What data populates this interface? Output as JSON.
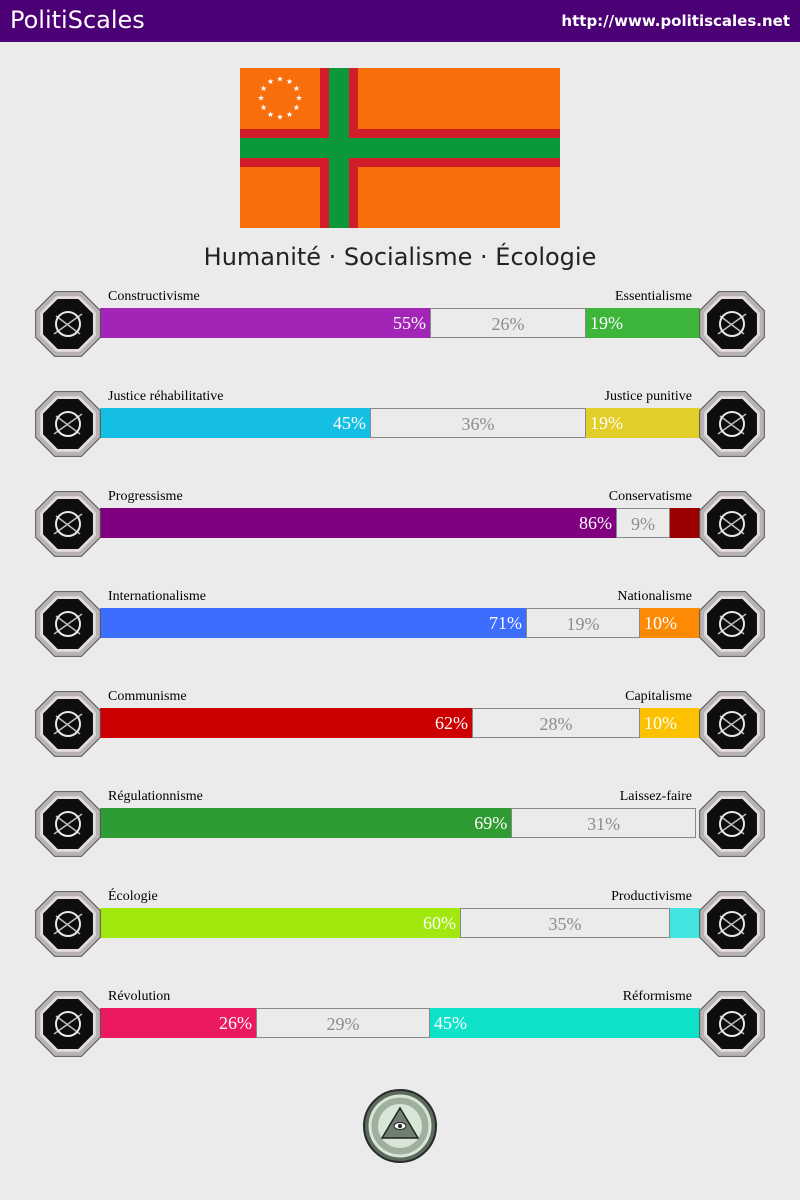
{
  "header": {
    "brand": "PolitiScales",
    "url": "http://www.politiscales.net"
  },
  "slogan": "Humanité · Socialisme · Écologie",
  "colors": {
    "header_bg": "#4b0076",
    "flag_orange": "#f76e0b",
    "flag_green": "#0b983a",
    "flag_red": "#d11d2a"
  },
  "axes": [
    {
      "left_label": "Constructivisme",
      "right_label": "Essentialisme",
      "left_value": 55,
      "center_value": 26,
      "right_value": 19,
      "left_text": "55%",
      "center_text": "26%",
      "right_text": "19%",
      "left_color": "#a225b8",
      "right_color": "#3db53b",
      "left_icon": "eye-icon",
      "right_icon": "flower-icon"
    },
    {
      "left_label": "Justice réhabilitative",
      "right_label": "Justice punitive",
      "left_value": 45,
      "center_value": 36,
      "right_value": 19,
      "left_text": "45%",
      "center_text": "36%",
      "right_text": "19%",
      "left_color": "#14bfe3",
      "right_color": "#e3cd28",
      "left_icon": "handshake-icon",
      "right_icon": "prison-bars-icon"
    },
    {
      "left_label": "Progressisme",
      "right_label": "Conservatisme",
      "left_value": 86,
      "center_value": 9,
      "right_value": 5,
      "left_text": "86%",
      "center_text": "9%",
      "right_text": "",
      "left_color": "#800080",
      "right_color": "#9b0000",
      "left_icon": "comet-icon",
      "right_icon": "quill-icon"
    },
    {
      "left_label": "Internationalisme",
      "right_label": "Nationalisme",
      "left_value": 71,
      "center_value": 19,
      "right_value": 10,
      "left_text": "71%",
      "center_text": "19%",
      "right_text": "10%",
      "left_color": "#3c6dfd",
      "right_color": "#fd8a05",
      "left_icon": "globe-icon",
      "right_icon": "flag-icon"
    },
    {
      "left_label": "Communisme",
      "right_label": "Capitalisme",
      "left_value": 62,
      "center_value": 28,
      "right_value": 10,
      "left_text": "62%",
      "center_text": "28%",
      "right_text": "10%",
      "left_color": "#cc0000",
      "right_color": "#fcc100",
      "left_icon": "hammer-sickle-icon",
      "right_icon": "money-bag-icon"
    },
    {
      "left_label": "Régulationnisme",
      "right_label": "Laissez-faire",
      "left_value": 69,
      "center_value": 31,
      "right_value": 0,
      "left_text": "69%",
      "center_text": "31%",
      "right_text": "",
      "left_color": "#2e9c32",
      "right_color": "#ffffff",
      "left_icon": "ruler-compass-icon",
      "right_icon": "butterflies-icon"
    },
    {
      "left_label": "Écologie",
      "right_label": "Productivisme",
      "left_value": 60,
      "center_value": 35,
      "right_value": 5,
      "left_text": "60%",
      "center_text": "35%",
      "right_text": "",
      "left_color": "#a1e80e",
      "right_color": "#43e5e0",
      "left_icon": "sprout-icon",
      "right_icon": "gear-icon"
    },
    {
      "left_label": "Révolution",
      "right_label": "Réformisme",
      "left_value": 26,
      "center_value": 29,
      "right_value": 45,
      "left_text": "26%",
      "center_text": "29%",
      "right_text": "45%",
      "left_color": "#eb1a5e",
      "right_color": "#0ee3ca",
      "left_icon": "fist-icon",
      "right_icon": "parliament-icon"
    }
  ],
  "seal": {
    "icon": "pyramid-eye-seal-icon"
  }
}
